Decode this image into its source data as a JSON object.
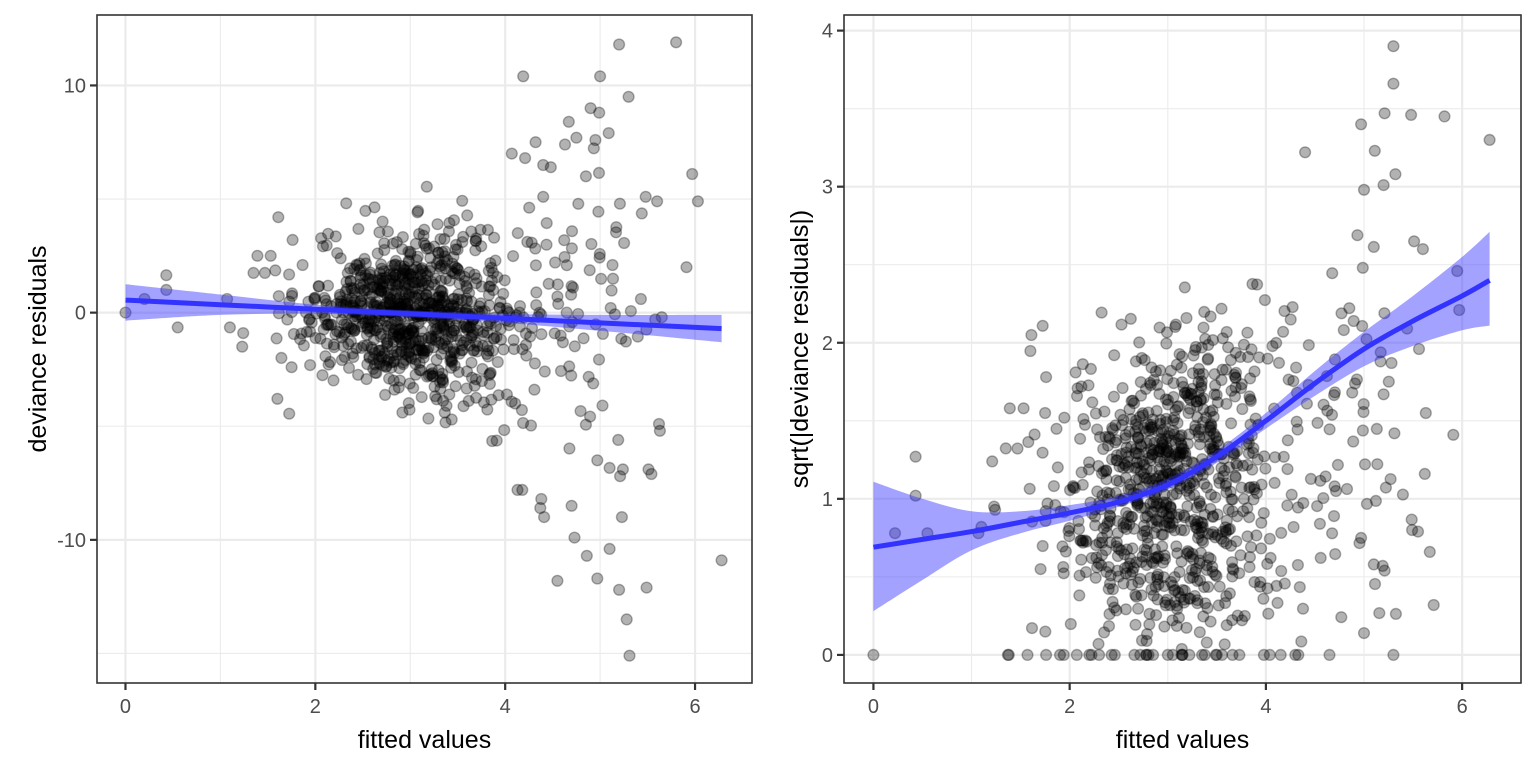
{
  "chart_data": [
    {
      "id": "residuals-vs-fitted",
      "type": "scatter",
      "title": "",
      "xlabel": "fitted values",
      "ylabel": "deviance residuals",
      "xlim": [
        -0.3,
        6.6
      ],
      "ylim": [
        -16.3,
        13.1
      ],
      "x_ticks": [
        0,
        2,
        4,
        6
      ],
      "x_tick_labels": [
        "0",
        "2",
        "4",
        "6"
      ],
      "y_ticks": [
        -10,
        0,
        10
      ],
      "y_tick_labels": [
        "-10",
        "0",
        "10"
      ],
      "x_minor": [
        1,
        3,
        5
      ],
      "y_minor": [
        -15,
        -5,
        5
      ],
      "grid": true,
      "point_color": "#000000",
      "point_alpha": 0.3,
      "n_points": 1000,
      "bulk_distribution": {
        "x_mean": 3.0,
        "x_sd": 0.55,
        "resid_sd_base": 1.6,
        "resid_sd_growth": 0.75
      },
      "notable_points": [
        {
          "x": 0.0,
          "y": 0.0
        },
        {
          "x": 0.2,
          "y": 0.6
        },
        {
          "x": 0.43,
          "y": 1.0
        },
        {
          "x": 0.43,
          "y": 1.65
        },
        {
          "x": 0.55,
          "y": -0.65
        },
        {
          "x": 1.07,
          "y": 0.6
        },
        {
          "x": 1.1,
          "y": -0.65
        },
        {
          "x": 1.24,
          "y": -0.9
        },
        {
          "x": 1.23,
          "y": -1.5
        },
        {
          "x": 1.39,
          "y": 2.5
        },
        {
          "x": 1.53,
          "y": 2.5
        },
        {
          "x": 1.61,
          "y": 4.2
        },
        {
          "x": 1.76,
          "y": 3.2
        },
        {
          "x": 1.75,
          "y": -2.4
        },
        {
          "x": 4.19,
          "y": 10.4
        },
        {
          "x": 4.07,
          "y": 7.0
        },
        {
          "x": 4.21,
          "y": 6.8
        },
        {
          "x": 4.32,
          "y": 7.5
        },
        {
          "x": 4.4,
          "y": 6.5
        },
        {
          "x": 4.48,
          "y": 6.4
        },
        {
          "x": 4.4,
          "y": 5.1
        },
        {
          "x": 4.63,
          "y": 7.4
        },
        {
          "x": 4.67,
          "y": 8.4
        },
        {
          "x": 4.75,
          "y": 7.7
        },
        {
          "x": 4.95,
          "y": 7.6
        },
        {
          "x": 4.85,
          "y": 6.0
        },
        {
          "x": 4.9,
          "y": 9.0
        },
        {
          "x": 5.0,
          "y": 10.4
        },
        {
          "x": 4.99,
          "y": 8.8
        },
        {
          "x": 5.09,
          "y": 7.9
        },
        {
          "x": 5.2,
          "y": 11.8
        },
        {
          "x": 5.3,
          "y": 9.5
        },
        {
          "x": 5.8,
          "y": 11.9
        },
        {
          "x": 5.91,
          "y": 2.0
        },
        {
          "x": 5.97,
          "y": 6.1
        },
        {
          "x": 6.03,
          "y": 4.9
        },
        {
          "x": 5.48,
          "y": 5.1
        },
        {
          "x": 5.6,
          "y": 4.9
        },
        {
          "x": 5.43,
          "y": 0.6
        },
        {
          "x": 5.58,
          "y": -0.3
        },
        {
          "x": 5.65,
          "y": -0.2
        },
        {
          "x": 5.62,
          "y": -4.9
        },
        {
          "x": 5.63,
          "y": -5.2
        },
        {
          "x": 5.19,
          "y": -5.6
        },
        {
          "x": 5.24,
          "y": -6.9
        },
        {
          "x": 5.21,
          "y": -7.2
        },
        {
          "x": 5.51,
          "y": -6.9
        },
        {
          "x": 5.54,
          "y": -7.1
        },
        {
          "x": 4.97,
          "y": -6.5
        },
        {
          "x": 4.13,
          "y": -7.8
        },
        {
          "x": 4.18,
          "y": -7.8
        },
        {
          "x": 4.38,
          "y": -8.2
        },
        {
          "x": 4.37,
          "y": -8.6
        },
        {
          "x": 4.41,
          "y": -9.0
        },
        {
          "x": 4.7,
          "y": -8.5
        },
        {
          "x": 4.73,
          "y": -9.9
        },
        {
          "x": 5.1,
          "y": -10.4
        },
        {
          "x": 5.23,
          "y": -9.0
        },
        {
          "x": 4.86,
          "y": -10.7
        },
        {
          "x": 4.55,
          "y": -11.8
        },
        {
          "x": 4.97,
          "y": -11.7
        },
        {
          "x": 5.2,
          "y": -12.2
        },
        {
          "x": 5.49,
          "y": -12.1
        },
        {
          "x": 5.28,
          "y": -13.5
        },
        {
          "x": 5.31,
          "y": -15.1
        },
        {
          "x": 6.28,
          "y": -10.9
        }
      ],
      "smooth": {
        "color": "#3333ff",
        "band_alpha": 0.45,
        "x": [
          0.0,
          1.0,
          2.0,
          3.0,
          4.0,
          5.0,
          6.28
        ],
        "y": [
          0.55,
          0.35,
          0.15,
          -0.05,
          -0.25,
          -0.45,
          -0.7
        ],
        "ymin": [
          -0.35,
          -0.1,
          -0.05,
          -0.2,
          -0.45,
          -0.8,
          -1.3
        ],
        "ymax": [
          1.25,
          0.8,
          0.35,
          0.1,
          -0.05,
          -0.1,
          -0.1
        ]
      }
    },
    {
      "id": "scale-location",
      "type": "scatter",
      "title": "",
      "xlabel": "fitted values",
      "ylabel": "sqrt(|deviance residuals|)",
      "xlim": [
        -0.3,
        6.6
      ],
      "ylim": [
        -0.18,
        4.1
      ],
      "x_ticks": [
        0,
        2,
        4,
        6
      ],
      "x_tick_labels": [
        "0",
        "2",
        "4",
        "6"
      ],
      "y_ticks": [
        0,
        1,
        2,
        3,
        4
      ],
      "y_tick_labels": [
        "0",
        "1",
        "2",
        "3",
        "4"
      ],
      "x_minor": [
        1,
        3,
        5
      ],
      "y_minor": [
        0.5,
        1.5,
        2.5,
        3.5
      ],
      "grid": true,
      "point_color": "#000000",
      "point_alpha": 0.3,
      "n_points": 1000,
      "notable_points": [
        {
          "x": 0.0,
          "y": 0.0
        },
        {
          "x": 0.22,
          "y": 0.78
        },
        {
          "x": 0.43,
          "y": 1.02
        },
        {
          "x": 0.43,
          "y": 1.27
        },
        {
          "x": 0.55,
          "y": 0.78
        },
        {
          "x": 1.07,
          "y": 0.78
        },
        {
          "x": 1.1,
          "y": 0.82
        },
        {
          "x": 1.23,
          "y": 0.95
        },
        {
          "x": 1.24,
          "y": 0.93
        },
        {
          "x": 1.21,
          "y": 1.24
        },
        {
          "x": 1.39,
          "y": 1.58
        },
        {
          "x": 1.53,
          "y": 1.58
        },
        {
          "x": 1.61,
          "y": 2.05
        },
        {
          "x": 1.76,
          "y": 1.78
        },
        {
          "x": 1.75,
          "y": 1.55
        },
        {
          "x": 1.37,
          "y": 0.0
        },
        {
          "x": 1.38,
          "y": 0.0
        },
        {
          "x": 1.57,
          "y": 0.0
        },
        {
          "x": 1.76,
          "y": 0.0
        },
        {
          "x": 1.94,
          "y": 0.0
        },
        {
          "x": 2.2,
          "y": 0.0
        },
        {
          "x": 2.3,
          "y": 0.0
        },
        {
          "x": 2.46,
          "y": 0.0
        },
        {
          "x": 2.66,
          "y": 0.0
        },
        {
          "x": 2.72,
          "y": 0.0
        },
        {
          "x": 2.78,
          "y": 0.0
        },
        {
          "x": 2.85,
          "y": 0.0
        },
        {
          "x": 3.0,
          "y": 0.0
        },
        {
          "x": 3.15,
          "y": 0.0
        },
        {
          "x": 3.22,
          "y": 0.0
        },
        {
          "x": 3.35,
          "y": 0.0
        },
        {
          "x": 3.5,
          "y": 0.0
        },
        {
          "x": 3.66,
          "y": 0.0
        },
        {
          "x": 3.98,
          "y": 0.0
        },
        {
          "x": 4.3,
          "y": 0.0
        },
        {
          "x": 4.33,
          "y": 0.0
        },
        {
          "x": 5.3,
          "y": 0.0
        },
        {
          "x": 5.3,
          "y": 3.9
        },
        {
          "x": 5.3,
          "y": 3.66
        },
        {
          "x": 5.21,
          "y": 3.47
        },
        {
          "x": 5.48,
          "y": 3.46
        },
        {
          "x": 5.82,
          "y": 3.45
        },
        {
          "x": 4.97,
          "y": 3.4
        },
        {
          "x": 5.32,
          "y": 3.08
        },
        {
          "x": 6.28,
          "y": 3.3
        },
        {
          "x": 5.11,
          "y": 3.23
        },
        {
          "x": 5.2,
          "y": 3.01
        },
        {
          "x": 5.0,
          "y": 2.98
        },
        {
          "x": 4.4,
          "y": 3.22
        },
        {
          "x": 5.51,
          "y": 2.65
        },
        {
          "x": 5.6,
          "y": 2.6
        },
        {
          "x": 5.95,
          "y": 2.46
        },
        {
          "x": 5.97,
          "y": 2.21
        },
        {
          "x": 5.63,
          "y": 1.55
        },
        {
          "x": 5.62,
          "y": 1.16
        },
        {
          "x": 5.67,
          "y": 0.66
        },
        {
          "x": 5.71,
          "y": 0.32
        },
        {
          "x": 5.55,
          "y": 0.79
        },
        {
          "x": 5.49,
          "y": 0.8
        },
        {
          "x": 5.91,
          "y": 1.41
        },
        {
          "x": 5.19,
          "y": 0.57
        },
        {
          "x": 5.21,
          "y": 0.54
        },
        {
          "x": 5.1,
          "y": 0.58
        },
        {
          "x": 4.97,
          "y": 0.75
        },
        {
          "x": 5.0,
          "y": 0.14
        },
        {
          "x": 5.56,
          "y": 1.96
        },
        {
          "x": 5.28,
          "y": 1.87
        },
        {
          "x": 5.31,
          "y": 1.42
        },
        {
          "x": 5.2,
          "y": 1.67
        }
      ],
      "smooth": {
        "color": "#3333ff",
        "band_alpha": 0.45,
        "x": [
          0.0,
          0.5,
          1.0,
          1.5,
          2.0,
          2.5,
          3.0,
          3.5,
          4.0,
          4.5,
          5.0,
          5.5,
          6.0,
          6.28
        ],
        "y": [
          0.69,
          0.74,
          0.79,
          0.85,
          0.91,
          0.98,
          1.09,
          1.27,
          1.5,
          1.74,
          1.96,
          2.14,
          2.3,
          2.4
        ],
        "ymin": [
          0.28,
          0.48,
          0.67,
          0.78,
          0.86,
          0.95,
          1.06,
          1.23,
          1.45,
          1.66,
          1.85,
          1.98,
          2.08,
          2.11
        ],
        "ymax": [
          1.11,
          1.0,
          0.92,
          0.92,
          0.96,
          1.02,
          1.13,
          1.31,
          1.55,
          1.82,
          2.07,
          2.3,
          2.55,
          2.71
        ]
      }
    }
  ]
}
